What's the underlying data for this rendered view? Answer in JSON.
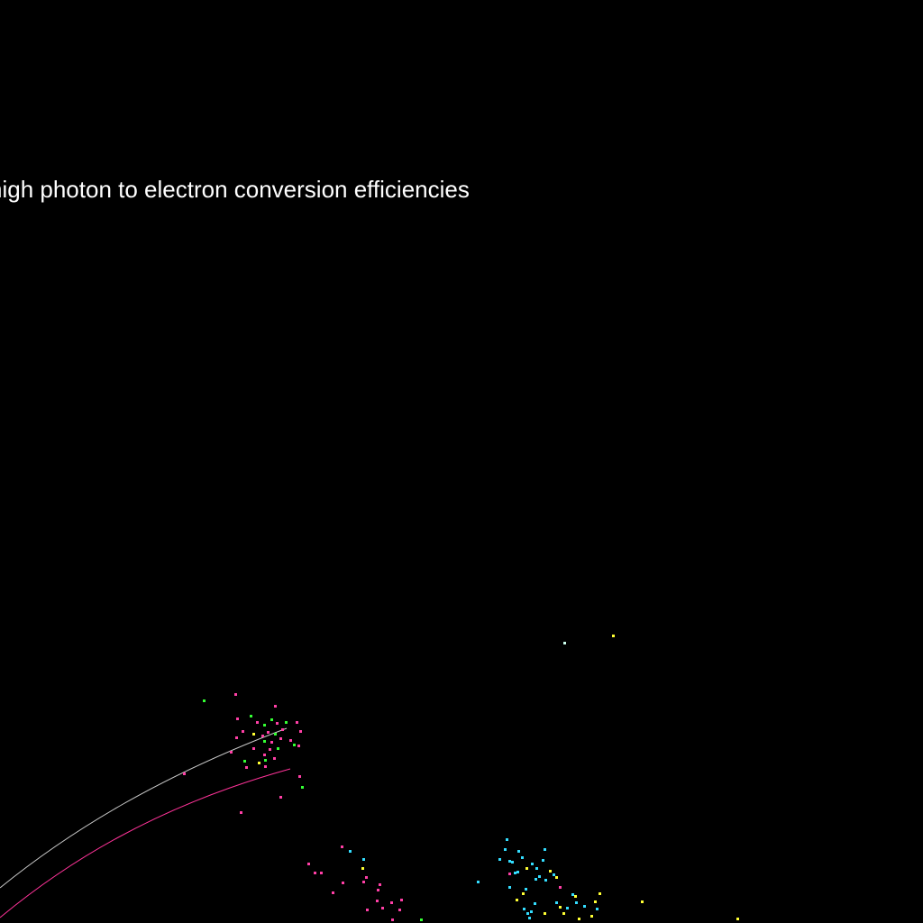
{
  "caption": "high photon to electron conversion efficiencies",
  "colors": {
    "background": "#000000",
    "text": "#ffffff",
    "track_gray": "#c8c8c8",
    "track_pink": "#ff3399",
    "dot_pink": "#ff3fa6",
    "dot_green": "#33ff33",
    "dot_cyan": "#33ddff",
    "dot_yellow": "#ffff33"
  }
}
